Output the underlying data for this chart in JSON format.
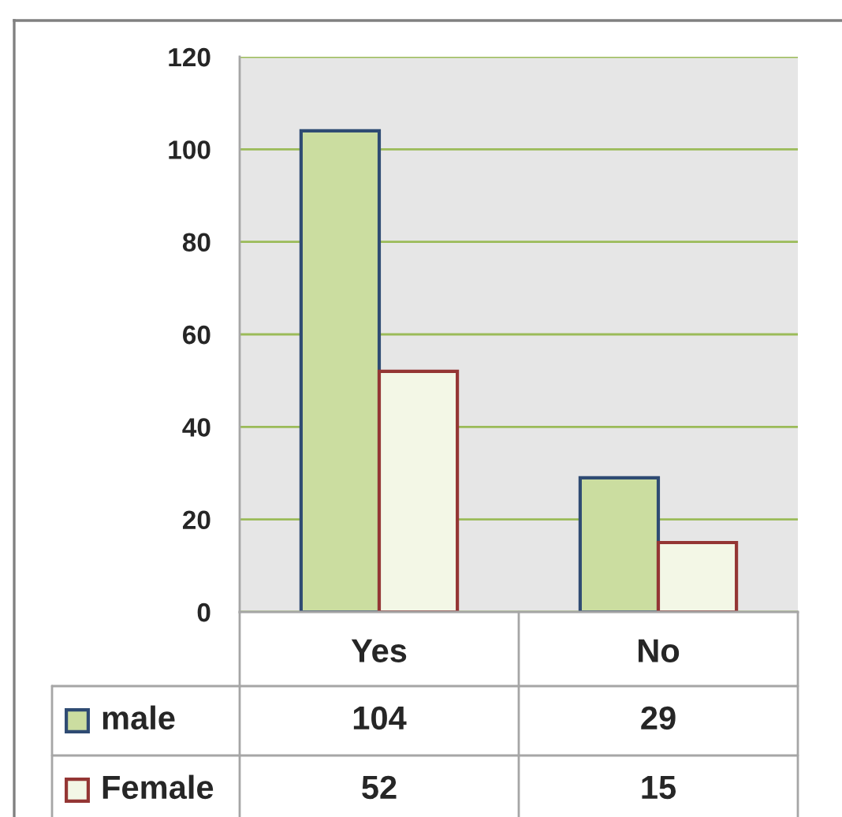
{
  "chart_data": {
    "type": "bar",
    "categories": [
      "Yes",
      "No"
    ],
    "series": [
      {
        "name": "male",
        "color": "#cbdda0",
        "values": [
          104,
          29
        ]
      },
      {
        "name": "Female",
        "color": "#f3f7e6",
        "values": [
          52,
          15
        ]
      }
    ],
    "ylim": [
      0,
      120
    ],
    "yticks": [
      0,
      20,
      40,
      60,
      80,
      100,
      120
    ],
    "grid": "y",
    "legend": "bottom",
    "data_labels": true
  }
}
